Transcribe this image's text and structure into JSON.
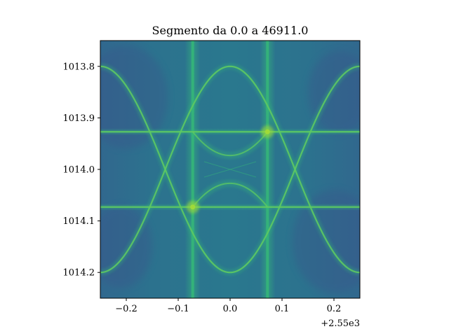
{
  "chart_data": {
    "type": "heatmap",
    "title": "Segmento da 0.0 a 46911.0",
    "xlabel": "",
    "ylabel": "",
    "x_offset_label": "+2.55e3",
    "xlim": [
      -0.25,
      0.25
    ],
    "ylim": [
      1014.25,
      1013.75
    ],
    "y_inverted": true,
    "x_ticks": [
      -0.2,
      -0.1,
      0.0,
      0.1,
      0.2
    ],
    "x_tick_labels": [
      "−0.2",
      "−0.1",
      "0.0",
      "0.1",
      "0.2"
    ],
    "y_ticks": [
      1013.8,
      1013.9,
      1014.0,
      1014.1,
      1014.2
    ],
    "y_tick_labels": [
      "1013.8",
      "1013.9",
      "1014.0",
      "1014.1",
      "1014.2"
    ],
    "grid": false,
    "colormap": "viridis",
    "features": {
      "vertical_lines_x": [
        -0.072,
        0.072
      ],
      "horizontal_lines_y": [
        1013.927,
        1014.073
      ],
      "cosine_curves": [
        {
          "center_y": 1014.0,
          "amplitude": 0.2,
          "period": 0.5
        },
        {
          "center_y": 1014.0,
          "amplitude": -0.2,
          "period": 0.5
        }
      ],
      "inner_arcs": [
        {
          "peak_y": 1013.973,
          "edge_y": 1013.927,
          "x_range": [
            -0.072,
            0.072
          ]
        },
        {
          "peak_y": 1014.027,
          "edge_y": 1014.073,
          "x_range": [
            -0.072,
            0.072
          ]
        }
      ],
      "hot_spots": [
        [
          -0.072,
          1014.073
        ],
        [
          0.072,
          1013.927
        ]
      ]
    },
    "colors": {
      "background": "#2e6f8e",
      "background_dark": "#3b528b",
      "line": "#35b779",
      "line_bright": "#5ec962",
      "hot": "#a0da39"
    }
  }
}
